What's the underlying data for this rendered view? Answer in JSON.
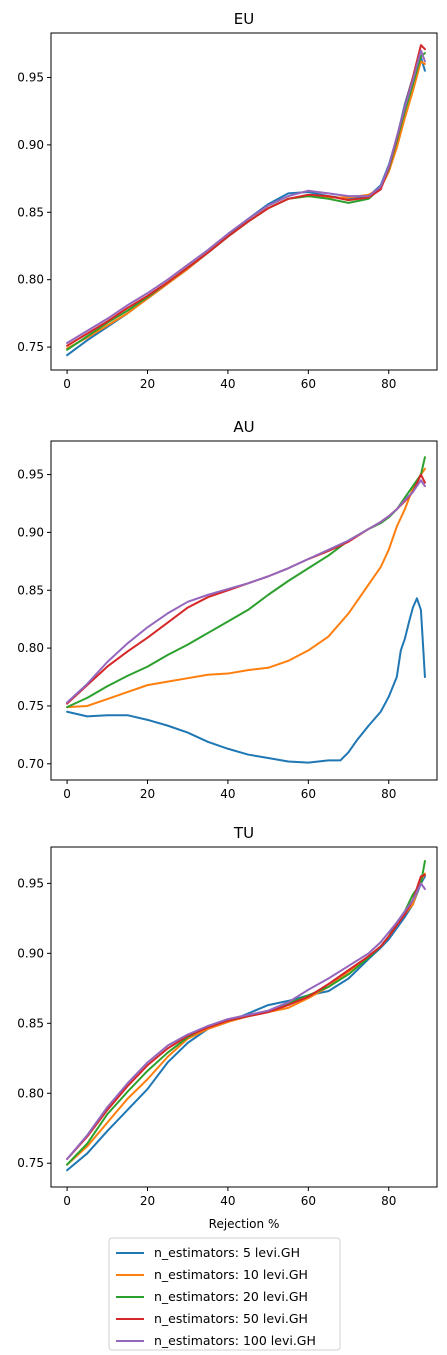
{
  "colors": {
    "n5": "#1f77b4",
    "n10": "#ff7f0e",
    "n20": "#2ca02c",
    "n50": "#d62728",
    "n100": "#9467bd"
  },
  "legend": {
    "location": "below plots, centered",
    "entries": [
      "n_estimators: 5 levi.GH",
      "n_estimators: 10 levi.GH",
      "n_estimators: 20 levi.GH",
      "n_estimators: 50 levi.GH",
      "n_estimators: 100 levi.GH"
    ]
  },
  "chart_data": [
    {
      "type": "line",
      "title": "EU",
      "xlabel": "",
      "ylabel": "",
      "xlim": [
        -4,
        92
      ],
      "ylim": [
        0.733,
        0.983
      ],
      "xticks": [
        0,
        20,
        40,
        60,
        80
      ],
      "yticks": [
        0.75,
        0.8,
        0.85,
        0.9,
        0.95
      ],
      "ytick_labels": [
        "0.75",
        "0.80",
        "0.85",
        "0.90",
        "0.95"
      ],
      "grid": false,
      "series": [
        {
          "name": "n_estimators: 5 levi.GH",
          "x": [
            0,
            5,
            10,
            15,
            20,
            25,
            30,
            35,
            40,
            45,
            50,
            55,
            60,
            65,
            70,
            75,
            78,
            80,
            82,
            84,
            86,
            88,
            89
          ],
          "y": [
            0.744,
            0.755,
            0.765,
            0.775,
            0.786,
            0.797,
            0.808,
            0.82,
            0.832,
            0.845,
            0.856,
            0.864,
            0.865,
            0.862,
            0.86,
            0.862,
            0.87,
            0.885,
            0.905,
            0.93,
            0.95,
            0.965,
            0.955
          ]
        },
        {
          "name": "n_estimators: 10 levi.GH",
          "x": [
            0,
            5,
            10,
            15,
            20,
            25,
            30,
            35,
            40,
            45,
            50,
            55,
            60,
            65,
            70,
            75,
            78,
            80,
            82,
            84,
            86,
            88,
            89
          ],
          "y": [
            0.749,
            0.757,
            0.766,
            0.775,
            0.786,
            0.797,
            0.808,
            0.82,
            0.832,
            0.843,
            0.853,
            0.86,
            0.862,
            0.861,
            0.861,
            0.863,
            0.868,
            0.88,
            0.898,
            0.92,
            0.94,
            0.962,
            0.96
          ]
        },
        {
          "name": "n_estimators: 20 levi.GH",
          "x": [
            0,
            5,
            10,
            15,
            20,
            25,
            30,
            35,
            40,
            45,
            50,
            55,
            60,
            65,
            70,
            75,
            78,
            80,
            82,
            84,
            86,
            88,
            89
          ],
          "y": [
            0.748,
            0.758,
            0.768,
            0.777,
            0.787,
            0.798,
            0.809,
            0.82,
            0.832,
            0.843,
            0.853,
            0.86,
            0.862,
            0.86,
            0.857,
            0.86,
            0.868,
            0.882,
            0.903,
            0.925,
            0.945,
            0.966,
            0.968
          ]
        },
        {
          "name": "n_estimators: 50 levi.GH",
          "x": [
            0,
            5,
            10,
            15,
            20,
            25,
            30,
            35,
            40,
            45,
            50,
            55,
            60,
            65,
            70,
            75,
            78,
            80,
            82,
            84,
            86,
            88,
            89
          ],
          "y": [
            0.751,
            0.76,
            0.769,
            0.779,
            0.788,
            0.798,
            0.809,
            0.82,
            0.832,
            0.843,
            0.853,
            0.86,
            0.863,
            0.862,
            0.859,
            0.861,
            0.867,
            0.883,
            0.905,
            0.928,
            0.95,
            0.974,
            0.971
          ]
        },
        {
          "name": "n_estimators: 100 levi.GH",
          "x": [
            0,
            5,
            10,
            15,
            20,
            25,
            30,
            35,
            40,
            45,
            50,
            55,
            60,
            65,
            70,
            75,
            78,
            80,
            82,
            84,
            86,
            88,
            89
          ],
          "y": [
            0.753,
            0.762,
            0.771,
            0.781,
            0.79,
            0.8,
            0.811,
            0.822,
            0.834,
            0.845,
            0.855,
            0.862,
            0.866,
            0.864,
            0.862,
            0.862,
            0.869,
            0.884,
            0.906,
            0.928,
            0.948,
            0.97,
            0.962
          ]
        }
      ]
    },
    {
      "type": "line",
      "title": "AU",
      "xlabel": "",
      "ylabel": "",
      "xlim": [
        -4,
        92
      ],
      "ylim": [
        0.686,
        0.979
      ],
      "xticks": [
        0,
        20,
        40,
        60,
        80
      ],
      "yticks": [
        0.7,
        0.75,
        0.8,
        0.85,
        0.9,
        0.95
      ],
      "ytick_labels": [
        "0.70",
        "0.75",
        "0.80",
        "0.85",
        "0.90",
        "0.95"
      ],
      "grid": false,
      "series": [
        {
          "name": "n_estimators: 5 levi.GH",
          "x": [
            0,
            5,
            10,
            15,
            20,
            25,
            30,
            35,
            40,
            45,
            50,
            55,
            60,
            65,
            68,
            70,
            72,
            75,
            78,
            80,
            82,
            83,
            84,
            85,
            86,
            87,
            88,
            89
          ],
          "y": [
            0.745,
            0.741,
            0.742,
            0.742,
            0.738,
            0.733,
            0.727,
            0.719,
            0.713,
            0.708,
            0.705,
            0.702,
            0.701,
            0.703,
            0.703,
            0.71,
            0.72,
            0.733,
            0.745,
            0.758,
            0.775,
            0.798,
            0.808,
            0.822,
            0.835,
            0.843,
            0.833,
            0.775
          ]
        },
        {
          "name": "n_estimators: 10 levi.GH",
          "x": [
            0,
            5,
            10,
            15,
            20,
            25,
            30,
            35,
            40,
            45,
            50,
            55,
            60,
            65,
            70,
            75,
            78,
            80,
            82,
            84,
            86,
            88,
            89
          ],
          "y": [
            0.749,
            0.75,
            0.756,
            0.762,
            0.768,
            0.771,
            0.774,
            0.777,
            0.778,
            0.781,
            0.783,
            0.789,
            0.798,
            0.81,
            0.83,
            0.855,
            0.87,
            0.885,
            0.905,
            0.92,
            0.938,
            0.95,
            0.955
          ]
        },
        {
          "name": "n_estimators: 20 levi.GH",
          "x": [
            0,
            5,
            10,
            15,
            20,
            25,
            30,
            35,
            40,
            45,
            50,
            55,
            60,
            65,
            70,
            75,
            78,
            80,
            82,
            84,
            86,
            88,
            89
          ],
          "y": [
            0.749,
            0.757,
            0.767,
            0.776,
            0.784,
            0.794,
            0.803,
            0.813,
            0.823,
            0.833,
            0.846,
            0.858,
            0.869,
            0.88,
            0.893,
            0.903,
            0.908,
            0.913,
            0.92,
            0.93,
            0.94,
            0.95,
            0.965
          ]
        },
        {
          "name": "n_estimators: 50 levi.GH",
          "x": [
            0,
            5,
            10,
            15,
            20,
            25,
            30,
            35,
            40,
            45,
            50,
            55,
            60,
            65,
            70,
            75,
            78,
            80,
            82,
            84,
            86,
            88,
            89
          ],
          "y": [
            0.752,
            0.768,
            0.784,
            0.797,
            0.809,
            0.822,
            0.835,
            0.844,
            0.85,
            0.856,
            0.862,
            0.869,
            0.877,
            0.884,
            0.892,
            0.903,
            0.909,
            0.914,
            0.92,
            0.927,
            0.935,
            0.95,
            0.943
          ]
        },
        {
          "name": "n_estimators: 100 levi.GH",
          "x": [
            0,
            5,
            10,
            15,
            20,
            25,
            30,
            35,
            40,
            45,
            50,
            55,
            60,
            65,
            70,
            75,
            78,
            80,
            82,
            84,
            86,
            88,
            89
          ],
          "y": [
            0.753,
            0.769,
            0.788,
            0.804,
            0.818,
            0.83,
            0.84,
            0.846,
            0.851,
            0.856,
            0.862,
            0.869,
            0.877,
            0.885,
            0.893,
            0.903,
            0.909,
            0.914,
            0.92,
            0.928,
            0.935,
            0.945,
            0.94
          ]
        }
      ]
    },
    {
      "type": "line",
      "title": "TU",
      "xlabel": "Rejection %",
      "ylabel": "",
      "xlim": [
        -4,
        92
      ],
      "ylim": [
        0.733,
        0.976
      ],
      "xticks": [
        0,
        20,
        40,
        60,
        80
      ],
      "yticks": [
        0.75,
        0.8,
        0.85,
        0.9,
        0.95
      ],
      "ytick_labels": [
        "0.75",
        "0.80",
        "0.85",
        "0.90",
        "0.95"
      ],
      "grid": false,
      "series": [
        {
          "name": "n_estimators: 5 levi.GH",
          "x": [
            0,
            5,
            10,
            15,
            20,
            25,
            30,
            35,
            40,
            45,
            50,
            55,
            60,
            65,
            70,
            75,
            78,
            80,
            82,
            84,
            86,
            88,
            89
          ],
          "y": [
            0.745,
            0.757,
            0.773,
            0.788,
            0.803,
            0.822,
            0.836,
            0.846,
            0.851,
            0.857,
            0.863,
            0.866,
            0.87,
            0.873,
            0.882,
            0.896,
            0.904,
            0.91,
            0.918,
            0.926,
            0.935,
            0.95,
            0.955
          ]
        },
        {
          "name": "n_estimators: 10 levi.GH",
          "x": [
            0,
            5,
            10,
            15,
            20,
            25,
            30,
            35,
            40,
            45,
            50,
            55,
            60,
            65,
            70,
            75,
            78,
            80,
            82,
            84,
            86,
            88,
            89
          ],
          "y": [
            0.749,
            0.762,
            0.779,
            0.796,
            0.81,
            0.826,
            0.839,
            0.846,
            0.851,
            0.855,
            0.858,
            0.861,
            0.868,
            0.876,
            0.887,
            0.898,
            0.905,
            0.912,
            0.92,
            0.928,
            0.935,
            0.952,
            0.957
          ]
        },
        {
          "name": "n_estimators: 20 levi.GH",
          "x": [
            0,
            5,
            10,
            15,
            20,
            25,
            30,
            35,
            40,
            45,
            50,
            55,
            60,
            65,
            70,
            75,
            78,
            80,
            82,
            84,
            86,
            88,
            89
          ],
          "y": [
            0.749,
            0.764,
            0.785,
            0.801,
            0.816,
            0.829,
            0.84,
            0.848,
            0.852,
            0.855,
            0.859,
            0.864,
            0.87,
            0.876,
            0.885,
            0.897,
            0.905,
            0.912,
            0.922,
            0.93,
            0.942,
            0.95,
            0.966
          ]
        },
        {
          "name": "n_estimators: 50 levi.GH",
          "x": [
            0,
            5,
            10,
            15,
            20,
            25,
            30,
            35,
            40,
            45,
            50,
            55,
            60,
            65,
            70,
            75,
            78,
            80,
            82,
            84,
            86,
            88,
            89
          ],
          "y": [
            0.753,
            0.769,
            0.788,
            0.805,
            0.82,
            0.832,
            0.841,
            0.847,
            0.852,
            0.855,
            0.858,
            0.863,
            0.869,
            0.878,
            0.888,
            0.898,
            0.905,
            0.912,
            0.92,
            0.928,
            0.938,
            0.955,
            0.956
          ]
        },
        {
          "name": "n_estimators: 100 levi.GH",
          "x": [
            0,
            5,
            10,
            15,
            20,
            25,
            30,
            35,
            40,
            45,
            50,
            55,
            60,
            65,
            70,
            75,
            78,
            80,
            82,
            84,
            86,
            88,
            89
          ],
          "y": [
            0.753,
            0.77,
            0.79,
            0.807,
            0.822,
            0.834,
            0.842,
            0.848,
            0.853,
            0.856,
            0.859,
            0.865,
            0.874,
            0.882,
            0.891,
            0.9,
            0.908,
            0.915,
            0.922,
            0.93,
            0.938,
            0.95,
            0.946
          ]
        }
      ]
    }
  ]
}
